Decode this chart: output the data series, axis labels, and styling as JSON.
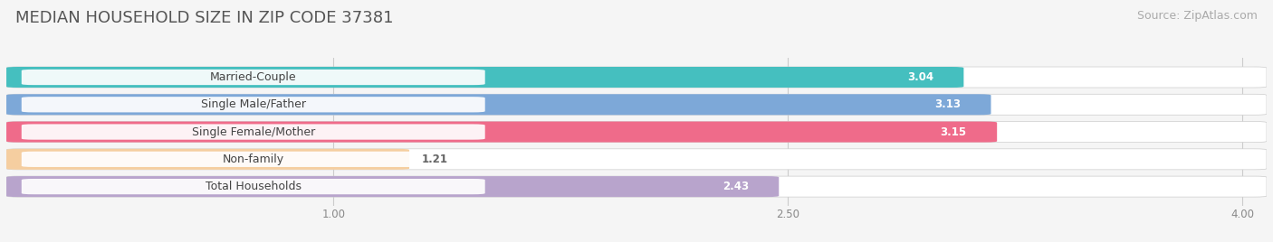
{
  "title": "MEDIAN HOUSEHOLD SIZE IN ZIP CODE 37381",
  "source": "Source: ZipAtlas.com",
  "categories": [
    "Married-Couple",
    "Single Male/Father",
    "Single Female/Mother",
    "Non-family",
    "Total Households"
  ],
  "values": [
    3.04,
    3.13,
    3.15,
    1.21,
    2.43
  ],
  "bar_colors": [
    "#45bfbf",
    "#7da8d8",
    "#ef6b8a",
    "#f5ceA0",
    "#b8a4cc"
  ],
  "xlim_min": 0,
  "xlim_max": 4.2,
  "xmin": 0.0,
  "xmax": 4.0,
  "xticks": [
    1.0,
    2.5,
    4.0
  ],
  "background_color": "#f5f5f5",
  "bar_bg_color": "#e4e4e4",
  "title_fontsize": 13,
  "source_fontsize": 9,
  "label_fontsize": 9,
  "value_fontsize": 8.5,
  "bar_height": 0.68,
  "figsize": [
    14.06,
    2.68
  ]
}
